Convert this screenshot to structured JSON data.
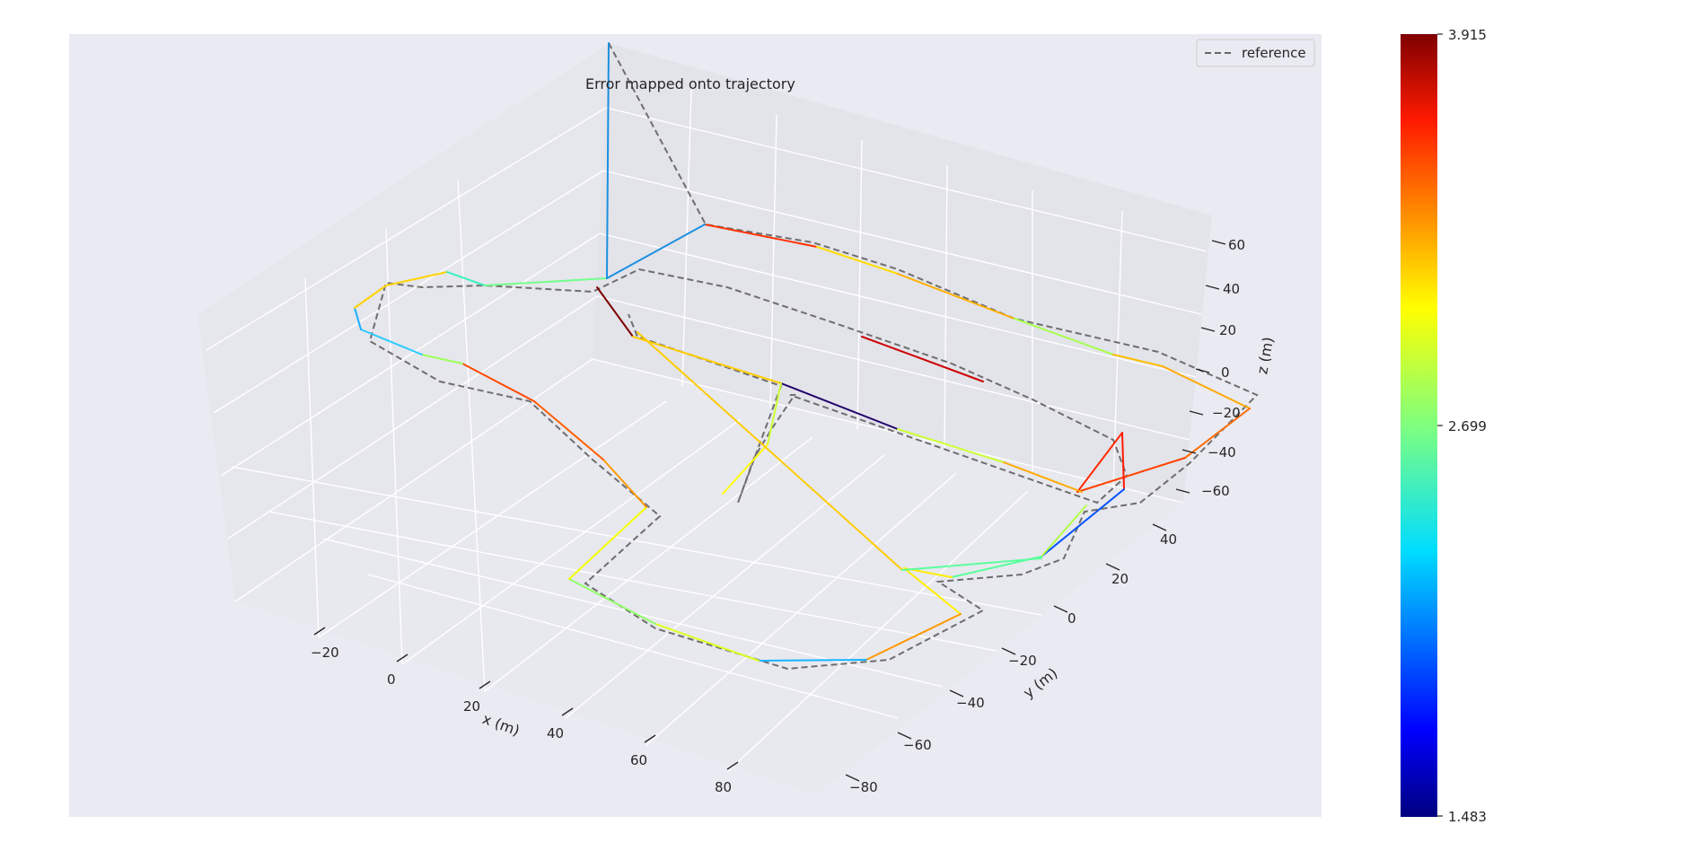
{
  "chart_data": {
    "type": "line",
    "title": "Error mapped onto trajectory",
    "xlabel": "x (m)",
    "ylabel": "y (m)",
    "zlabel": "z (m)",
    "x_ticks": [
      "−20",
      "0",
      "20",
      "40",
      "60",
      "80"
    ],
    "y_ticks": [
      "−80",
      "−60",
      "−40",
      "−20",
      "0",
      "20",
      "40"
    ],
    "z_ticks": [
      "−60",
      "−40",
      "−20",
      "0",
      "20",
      "40",
      "60"
    ],
    "legend": {
      "placement": "top-right",
      "entries": [
        "reference"
      ]
    },
    "colorbar": {
      "colormap": "jet",
      "min": 1.483,
      "max": 3.915,
      "tick_labels": [
        "1.483",
        "2.699",
        "3.915"
      ],
      "tick_values": [
        1.483,
        2.699,
        3.915
      ]
    },
    "grid": true,
    "note": "3D trajectory; reference shown dashed gray, estimate colored by error"
  }
}
